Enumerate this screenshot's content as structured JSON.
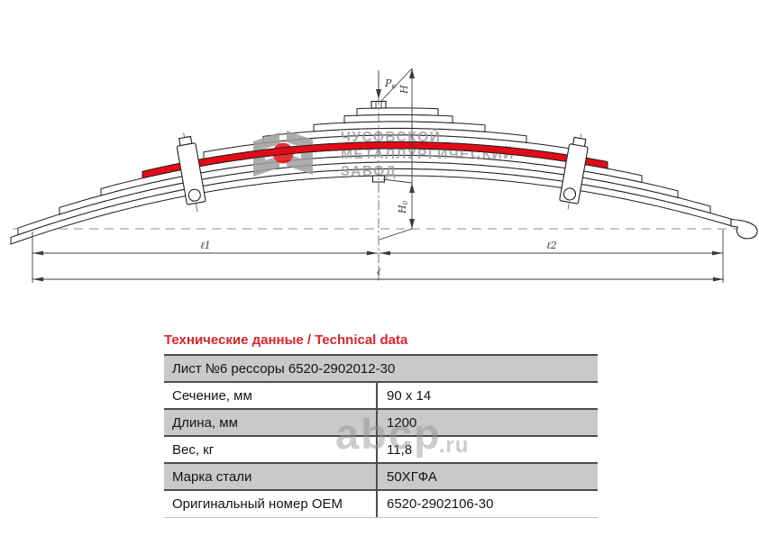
{
  "drawing": {
    "brand_watermark": {
      "line1": "ЧУСОВСКОЙ",
      "line2": "МЕТАЛЛУРГИЧЕСКИЙ",
      "line3": "ЗАВОД"
    },
    "labels": {
      "force": "P",
      "force_sub": "к",
      "height": "H",
      "camber": "H",
      "camber_sub": "0",
      "span_left": "ℓ1",
      "span_right": "ℓ2",
      "total_length": "ℓ"
    }
  },
  "site_watermark": {
    "name": "abcp",
    "tld": ".ru"
  },
  "table": {
    "title": "Технические данные / Technical data",
    "header_row": "Лист №6 рессоры 6520-2902012-30",
    "rows": [
      {
        "label": "Сечение, мм",
        "value": "90 x 14"
      },
      {
        "label": "Длина, мм",
        "value": "1200"
      },
      {
        "label": "Вес, кг",
        "value": "11,8"
      },
      {
        "label": "Марка стали",
        "value": "50ХГФА"
      },
      {
        "label": "Оригинальный номер OEM",
        "value": "6520-2902106-30"
      }
    ]
  },
  "colors": {
    "accent_red": "#d8262c",
    "leaf_highlight_red": "#e30b17",
    "row_gray": "#c9c9c9",
    "table_border": "#4d4d4d",
    "watermark_gray": "#9a9a9a"
  }
}
